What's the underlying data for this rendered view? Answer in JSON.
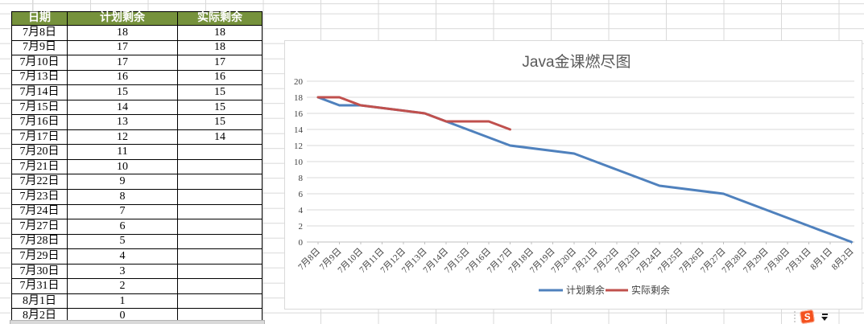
{
  "table": {
    "columns": [
      "日期",
      "计划剩余",
      "实际剩余"
    ],
    "rows": [
      [
        "7月8日",
        "18",
        "18"
      ],
      [
        "7月9日",
        "17",
        "18"
      ],
      [
        "7月10日",
        "17",
        "17"
      ],
      [
        "7月13日",
        "16",
        "16"
      ],
      [
        "7月14日",
        "15",
        "15"
      ],
      [
        "7月15日",
        "14",
        "15"
      ],
      [
        "7月16日",
        "13",
        "15"
      ],
      [
        "7月17日",
        "12",
        "14"
      ],
      [
        "7月20日",
        "11",
        ""
      ],
      [
        "7月21日",
        "10",
        ""
      ],
      [
        "7月22日",
        "9",
        ""
      ],
      [
        "7月23日",
        "8",
        ""
      ],
      [
        "7月24日",
        "7",
        ""
      ],
      [
        "7月27日",
        "6",
        ""
      ],
      [
        "7月28日",
        "5",
        ""
      ],
      [
        "7月29日",
        "4",
        ""
      ],
      [
        "7月30日",
        "3",
        ""
      ],
      [
        "7月31日",
        "2",
        ""
      ],
      [
        "8月1日",
        "1",
        ""
      ],
      [
        "8月2日",
        "0",
        ""
      ]
    ]
  },
  "chart_data": {
    "type": "line",
    "title": "Java金课燃尽图",
    "x_categories": [
      "7月8日",
      "7月9日",
      "7月10日",
      "7月11日",
      "7月12日",
      "7月13日",
      "7月14日",
      "7月15日",
      "7月16日",
      "7月17日",
      "7月18日",
      "7月19日",
      "7月20日",
      "7月21日",
      "7月22日",
      "7月23日",
      "7月24日",
      "7月25日",
      "7月26日",
      "7月27日",
      "7月28日",
      "7月29日",
      "7月30日",
      "7月31日",
      "8月1日",
      "8月2日"
    ],
    "series": [
      {
        "name": "计划剩余",
        "color": "#4F81BD",
        "x_index": [
          0,
          1,
          2,
          5,
          6,
          7,
          8,
          9,
          12,
          13,
          14,
          15,
          16,
          19,
          20,
          21,
          22,
          23,
          24,
          25
        ],
        "values": [
          18,
          17,
          17,
          16,
          15,
          14,
          13,
          12,
          11,
          10,
          9,
          8,
          7,
          6,
          5,
          4,
          3,
          2,
          1,
          0
        ]
      },
      {
        "name": "实际剩余",
        "color": "#C0504D",
        "x_index": [
          0,
          1,
          2,
          5,
          6,
          7,
          8,
          9
        ],
        "values": [
          18,
          18,
          17,
          16,
          15,
          15,
          15,
          14
        ]
      }
    ],
    "ylim": [
      0,
      20
    ],
    "y_tick_step": 2,
    "grid": true,
    "legend_position": "bottom"
  },
  "widget": {
    "logo_letter": "S"
  },
  "colors": {
    "header_bg": "#76923C",
    "header_text": "#FFFFFF",
    "table_border": "#000000",
    "grid_line": "#D9D9D9",
    "axis_line": "#BFBFBF",
    "axis_text": "#404040",
    "title_text": "#595959",
    "logo_bg": "#F4511E"
  }
}
